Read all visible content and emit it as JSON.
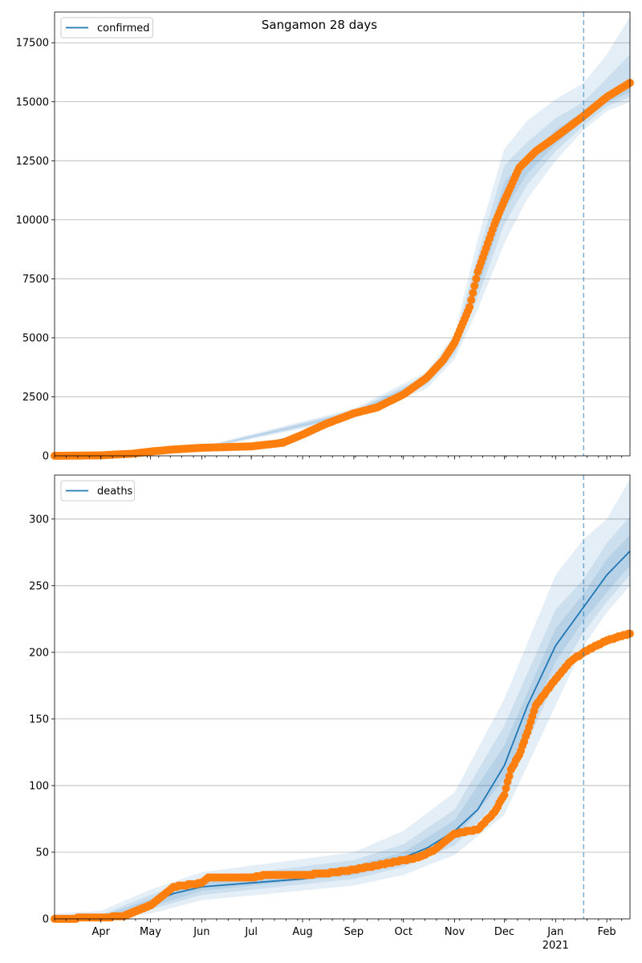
{
  "figure_title": "Sangamon 28 days",
  "chart_data": [
    {
      "type": "line",
      "legend": [
        "confirmed"
      ],
      "ylim": [
        0,
        18800
      ],
      "yticks": [
        0,
        2500,
        5000,
        7500,
        10000,
        12500,
        15000,
        17500
      ],
      "xlim": [
        "2020-03-04",
        "2021-02-15"
      ],
      "xticks": [
        {
          "date": "2020-04-01",
          "label": "Apr"
        },
        {
          "date": "2020-05-01",
          "label": "May"
        },
        {
          "date": "2020-06-01",
          "label": "Jun"
        },
        {
          "date": "2020-07-01",
          "label": "Jul"
        },
        {
          "date": "2020-08-01",
          "label": "Aug"
        },
        {
          "date": "2020-09-01",
          "label": "Sep"
        },
        {
          "date": "2020-10-01",
          "label": "Oct"
        },
        {
          "date": "2020-11-01",
          "label": "Nov"
        },
        {
          "date": "2020-12-01",
          "label": "Dec"
        },
        {
          "date": "2021-01-01",
          "label": "Jan",
          "sublabel": "2021"
        },
        {
          "date": "2021-02-01",
          "label": "Feb"
        }
      ],
      "forecast_start": "2021-01-18",
      "colors": {
        "model": "#1f77b4",
        "observed": "#ff7f0e",
        "band": "#1f77b4"
      },
      "model": {
        "name": "confirmed",
        "x": [
          "2020-03-04",
          "2020-04-01",
          "2020-05-01",
          "2020-06-01",
          "2020-07-01",
          "2020-08-01",
          "2020-09-01",
          "2020-10-01",
          "2020-10-15",
          "2020-11-01",
          "2020-11-10",
          "2020-11-20",
          "2020-12-01",
          "2020-12-10",
          "2020-12-20",
          "2021-01-01",
          "2021-01-18",
          "2021-02-01",
          "2021-02-15"
        ],
        "y": [
          0,
          20,
          150,
          330,
          400,
          900,
          1800,
          2550,
          3200,
          4600,
          6400,
          9000,
          11000,
          12200,
          12800,
          13500,
          14400,
          15100,
          15700
        ]
      },
      "observed": {
        "name": "confirmed (observed)",
        "x": [
          "2020-03-04",
          "2020-04-01",
          "2020-04-20",
          "2020-05-01",
          "2020-05-15",
          "2020-06-01",
          "2020-07-01",
          "2020-07-20",
          "2020-08-01",
          "2020-08-15",
          "2020-09-01",
          "2020-09-15",
          "2020-10-01",
          "2020-10-15",
          "2020-10-25",
          "2020-11-01",
          "2020-11-10",
          "2020-11-15",
          "2020-11-25",
          "2020-12-01",
          "2020-12-10",
          "2020-12-20",
          "2021-01-01",
          "2021-01-18",
          "2021-02-01",
          "2021-02-15"
        ],
        "y": [
          0,
          20,
          90,
          180,
          270,
          340,
          400,
          550,
          900,
          1350,
          1800,
          2050,
          2600,
          3300,
          4050,
          4800,
          6300,
          7800,
          9800,
          10800,
          12200,
          12900,
          13500,
          14400,
          15200,
          15800
        ]
      },
      "bands": {
        "x": [
          "2020-03-04",
          "2020-06-01",
          "2020-09-01",
          "2020-10-15",
          "2020-11-01",
          "2020-11-15",
          "2020-12-01",
          "2020-12-15",
          "2021-01-01",
          "2021-01-18",
          "2021-02-01",
          "2021-02-15"
        ],
        "lo": [
          [
            0,
            320,
            1730,
            3100,
            4450,
            7100,
            10400,
            11950,
            13200,
            14200,
            14950,
            15400
          ],
          [
            0,
            300,
            1680,
            3000,
            4300,
            6700,
            9800,
            11500,
            12900,
            14000,
            14800,
            15200
          ],
          [
            0,
            270,
            1600,
            2850,
            4100,
            6200,
            9000,
            10900,
            12500,
            13800,
            14600,
            15000
          ]
        ],
        "hi": [
          [
            0,
            340,
            1870,
            3300,
            4750,
            7900,
            11600,
            12700,
            13800,
            14600,
            15300,
            16000
          ],
          [
            0,
            360,
            1920,
            3400,
            4900,
            8500,
            12300,
            13300,
            14300,
            15000,
            16000,
            17000
          ],
          [
            0,
            390,
            2000,
            3550,
            5150,
            9200,
            13000,
            14200,
            15100,
            15800,
            17000,
            18600
          ]
        ]
      }
    },
    {
      "type": "line",
      "legend": [
        "deaths"
      ],
      "ylim": [
        0,
        333
      ],
      "yticks": [
        0,
        50,
        100,
        150,
        200,
        250,
        300
      ],
      "xlim": [
        "2020-03-04",
        "2021-02-15"
      ],
      "xticks": [
        {
          "date": "2020-04-01",
          "label": "Apr"
        },
        {
          "date": "2020-05-01",
          "label": "May"
        },
        {
          "date": "2020-06-01",
          "label": "Jun"
        },
        {
          "date": "2020-07-01",
          "label": "Jul"
        },
        {
          "date": "2020-08-01",
          "label": "Aug"
        },
        {
          "date": "2020-09-01",
          "label": "Sep"
        },
        {
          "date": "2020-10-01",
          "label": "Oct"
        },
        {
          "date": "2020-11-01",
          "label": "Nov"
        },
        {
          "date": "2020-12-01",
          "label": "Dec"
        },
        {
          "date": "2021-01-01",
          "label": "Jan",
          "sublabel": "2021"
        },
        {
          "date": "2021-02-01",
          "label": "Feb"
        }
      ],
      "forecast_start": "2021-01-18",
      "colors": {
        "model": "#1f77b4",
        "observed": "#ff7f0e",
        "band": "#1f77b4"
      },
      "model": {
        "name": "deaths",
        "x": [
          "2020-03-04",
          "2020-04-01",
          "2020-04-20",
          "2020-05-01",
          "2020-05-15",
          "2020-06-01",
          "2020-07-01",
          "2020-08-01",
          "2020-09-01",
          "2020-10-01",
          "2020-10-15",
          "2020-11-01",
          "2020-11-15",
          "2020-12-01",
          "2020-12-15",
          "2021-01-01",
          "2021-01-18",
          "2021-02-01",
          "2021-02-15"
        ],
        "y": [
          0,
          1,
          4,
          12,
          19,
          24,
          27,
          30,
          36,
          46,
          53,
          66,
          82,
          115,
          160,
          205,
          234,
          258,
          276
        ]
      },
      "observed": {
        "name": "deaths (observed)",
        "x": [
          "2020-03-04",
          "2020-04-01",
          "2020-04-15",
          "2020-05-01",
          "2020-05-10",
          "2020-05-15",
          "2020-06-01",
          "2020-06-05",
          "2020-07-01",
          "2020-07-10",
          "2020-08-01",
          "2020-08-15",
          "2020-09-01",
          "2020-09-15",
          "2020-10-01",
          "2020-10-10",
          "2020-10-20",
          "2020-11-01",
          "2020-11-15",
          "2020-11-25",
          "2020-12-01",
          "2020-12-05",
          "2020-12-10",
          "2020-12-15",
          "2020-12-20",
          "2021-01-01",
          "2021-01-10",
          "2021-01-18",
          "2021-02-01",
          "2021-02-15"
        ],
        "y": [
          0,
          1,
          2,
          10,
          19,
          24,
          27,
          31,
          31,
          33,
          33,
          34,
          37,
          40,
          44,
          46,
          52,
          64,
          67,
          80,
          93,
          112,
          123,
          140,
          160,
          180,
          193,
          200,
          209,
          214
        ]
      },
      "bands": {
        "x": [
          "2020-03-04",
          "2020-04-01",
          "2020-05-01",
          "2020-06-01",
          "2020-09-01",
          "2020-10-01",
          "2020-11-01",
          "2020-12-01",
          "2021-01-01",
          "2021-01-18",
          "2021-02-01",
          "2021-02-15"
        ],
        "lo": [
          [
            0,
            0,
            9,
            21,
            33,
            42,
            60,
            105,
            193,
            224,
            245,
            265
          ],
          [
            0,
            0,
            7,
            18,
            30,
            39,
            55,
            93,
            180,
            215,
            238,
            258
          ],
          [
            0,
            0,
            4,
            14,
            25,
            33,
            48,
            78,
            160,
            205,
            230,
            250
          ]
        ],
        "hi": [
          [
            1,
            2,
            15,
            27,
            40,
            50,
            74,
            130,
            218,
            244,
            270,
            288
          ],
          [
            2,
            3,
            18,
            30,
            44,
            56,
            82,
            145,
            232,
            255,
            282,
            302
          ],
          [
            4,
            6,
            22,
            35,
            50,
            66,
            95,
            165,
            258,
            285,
            300,
            330
          ]
        ]
      }
    }
  ]
}
